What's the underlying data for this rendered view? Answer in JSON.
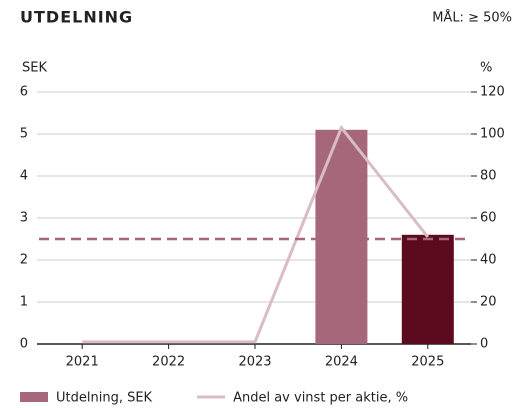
{
  "chart_data": {
    "type": "bar",
    "title": "UTDELNING",
    "target_label": "MÅL: ≥ 50%",
    "target": 50,
    "target_axis": "y2",
    "target_color": "#a6677a",
    "ylabel": "SEK",
    "y2label": "%",
    "categories": [
      "2021",
      "2022",
      "2023",
      "2024",
      "2025"
    ],
    "series": [
      {
        "name": "Utdelning, SEK",
        "type": "bar",
        "color": "#a6677a",
        "colors": [
          "#a6677a",
          "#a6677a",
          "#a6677a",
          "#a6677a",
          "#5c0a1e"
        ],
        "values": [
          0,
          0,
          0,
          5.1,
          2.6
        ]
      },
      {
        "name": "Andel av vinst per aktie, %",
        "type": "line",
        "axis": "y2",
        "color": "#d9bcc6",
        "values": [
          1,
          1,
          1,
          103,
          51
        ]
      }
    ],
    "ylim": [
      0,
      6
    ],
    "yticks": [
      0,
      1,
      2,
      3,
      4,
      5,
      6
    ],
    "y2lim": [
      0,
      120
    ],
    "y2ticks": [
      0,
      20,
      40,
      60,
      80,
      100,
      120
    ],
    "grid": true
  }
}
